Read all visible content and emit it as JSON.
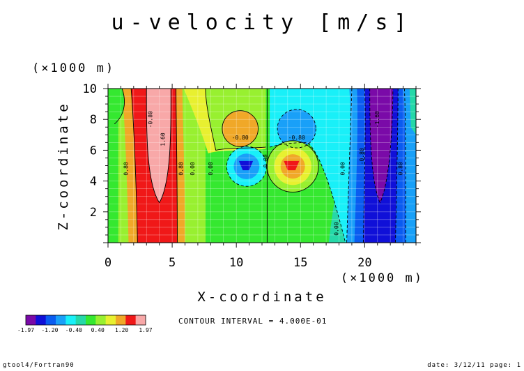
{
  "chart_data": {
    "type": "heatmap",
    "title": "u-velocity [m/s]",
    "xlabel": "X-coordinate",
    "ylabel": "Z-coordinate",
    "x_unit": "(×1000 m)",
    "y_unit": "(×1000 m)",
    "xlim": [
      0,
      24
    ],
    "ylim": [
      0,
      10
    ],
    "x_ticks": [
      0,
      5,
      10,
      15,
      20
    ],
    "y_ticks": [
      2,
      4,
      6,
      8,
      10
    ],
    "grid": true,
    "contour_interval_text": "CONTOUR INTERVAL = 4.000E-01",
    "contour_labels": [
      "-0.80",
      "-0.80",
      "0.80",
      "0.00",
      "0.00",
      "0.80",
      "-0.80",
      "0.80",
      "0.00",
      "0.00",
      "-0.80",
      "0.80",
      "1.60",
      "-1.60"
    ],
    "colorbar": {
      "tick_labels": [
        "-1.97",
        "-1.20",
        "-0.40",
        "0.40",
        "1.20",
        "1.97"
      ],
      "colors": [
        "#7a0aa8",
        "#1010d8",
        "#0a5cf0",
        "#19a0f8",
        "#19f0f8",
        "#25d8a8",
        "#35e830",
        "#98f030",
        "#e8f030",
        "#f0a828",
        "#f01818",
        "#f8a8a8"
      ]
    },
    "field_colors": {
      "bg_green": "#35e830",
      "yellow_green": "#98f030",
      "cyan": "#19f0f8",
      "light_blue": "#19a0f8",
      "blue": "#0a5cf0",
      "dark_blue": "#1010d8",
      "purple": "#7a0aa8",
      "orange": "#f0a828",
      "red": "#f01818",
      "pink": "#f8a8a8",
      "yellow": "#e8f030",
      "teal": "#25d8a8"
    }
  },
  "footer": {
    "left": "gtool4/Fortran90",
    "right": "date: 3/12/11 page: 1"
  }
}
